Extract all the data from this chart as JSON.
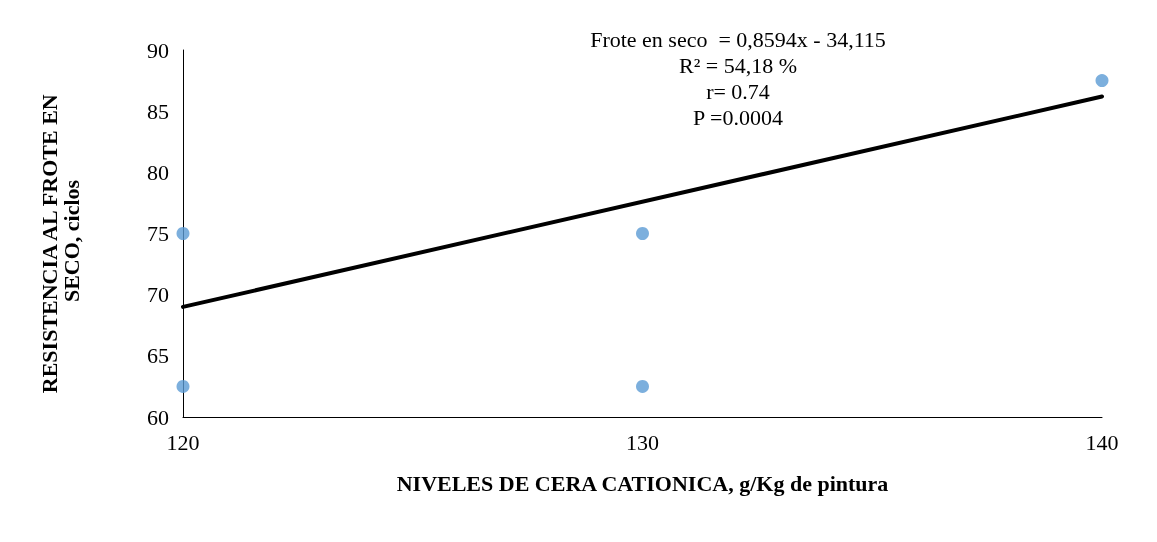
{
  "chart_data": {
    "type": "scatter",
    "xlabel": "NIVELES DE CERA CATIONICA, g/Kg de pintura",
    "ylabel": "RESISTENCIA AL FROTE EN SECO, ciclos",
    "annotations": [
      "Frote en seco  = 0,8594x - 34,115",
      "R² = 54,18 %",
      "r= 0.74",
      "P =0.0004"
    ],
    "series": [
      {
        "color": "#5b9bd5",
        "marker": "circle",
        "x": [
          120,
          120,
          130,
          130,
          140
        ],
        "values": [
          75,
          62.5,
          75,
          62.5,
          87.5
        ]
      },
      {
        "type": "line",
        "color": "#000000",
        "marker": "none",
        "line_style": "solid",
        "x": [
          120,
          140
        ],
        "values": [
          69.0,
          86.2
        ]
      }
    ],
    "xlim": [
      120,
      140
    ],
    "xticks": [
      120,
      130,
      140
    ],
    "ylim": [
      60,
      90
    ],
    "yticks": [
      60,
      65,
      70,
      75,
      80,
      85,
      90
    ],
    "grid": false
  }
}
